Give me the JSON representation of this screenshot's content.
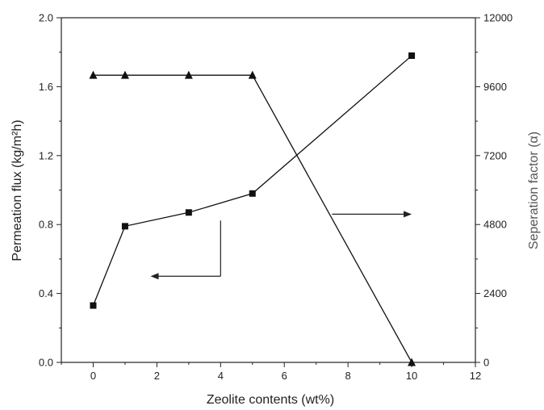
{
  "chart_data": {
    "type": "line",
    "title": "",
    "xlabel": "Zeolite contents (wt%)",
    "ylabel_left": "Permeation flux (kg/m²h)",
    "ylabel_right": "Seperation factor (α)",
    "xlim": [
      -1,
      12
    ],
    "ylim_left": [
      0,
      2.0
    ],
    "ylim_right": [
      0,
      12000
    ],
    "x_ticks": [
      0,
      2,
      4,
      6,
      8,
      10,
      12
    ],
    "y_left_ticks": [
      "0.0",
      "0.4",
      "0.8",
      "1.2",
      "1.6",
      "2.0"
    ],
    "y_right_ticks": [
      "0",
      "2400",
      "4800",
      "7200",
      "9600",
      "12000"
    ],
    "grid": false,
    "series": [
      {
        "axis": "left",
        "marker": "square",
        "x": [
          0,
          1,
          3,
          5,
          10
        ],
        "values": [
          0.33,
          0.79,
          0.87,
          0.98,
          1.78
        ]
      },
      {
        "axis": "right",
        "marker": "triangle",
        "x": [
          0,
          1,
          3,
          5,
          10
        ],
        "values": [
          10000,
          10000,
          10000,
          10000,
          0
        ]
      }
    ],
    "annotations": [
      {
        "type": "arrow",
        "points_to": "left-axis",
        "meaning": "square series uses left axis"
      },
      {
        "type": "arrow",
        "points_to": "right-axis",
        "meaning": "triangle series uses right axis"
      }
    ],
    "colors": {
      "axis": "#222222",
      "series": "#111111"
    }
  }
}
